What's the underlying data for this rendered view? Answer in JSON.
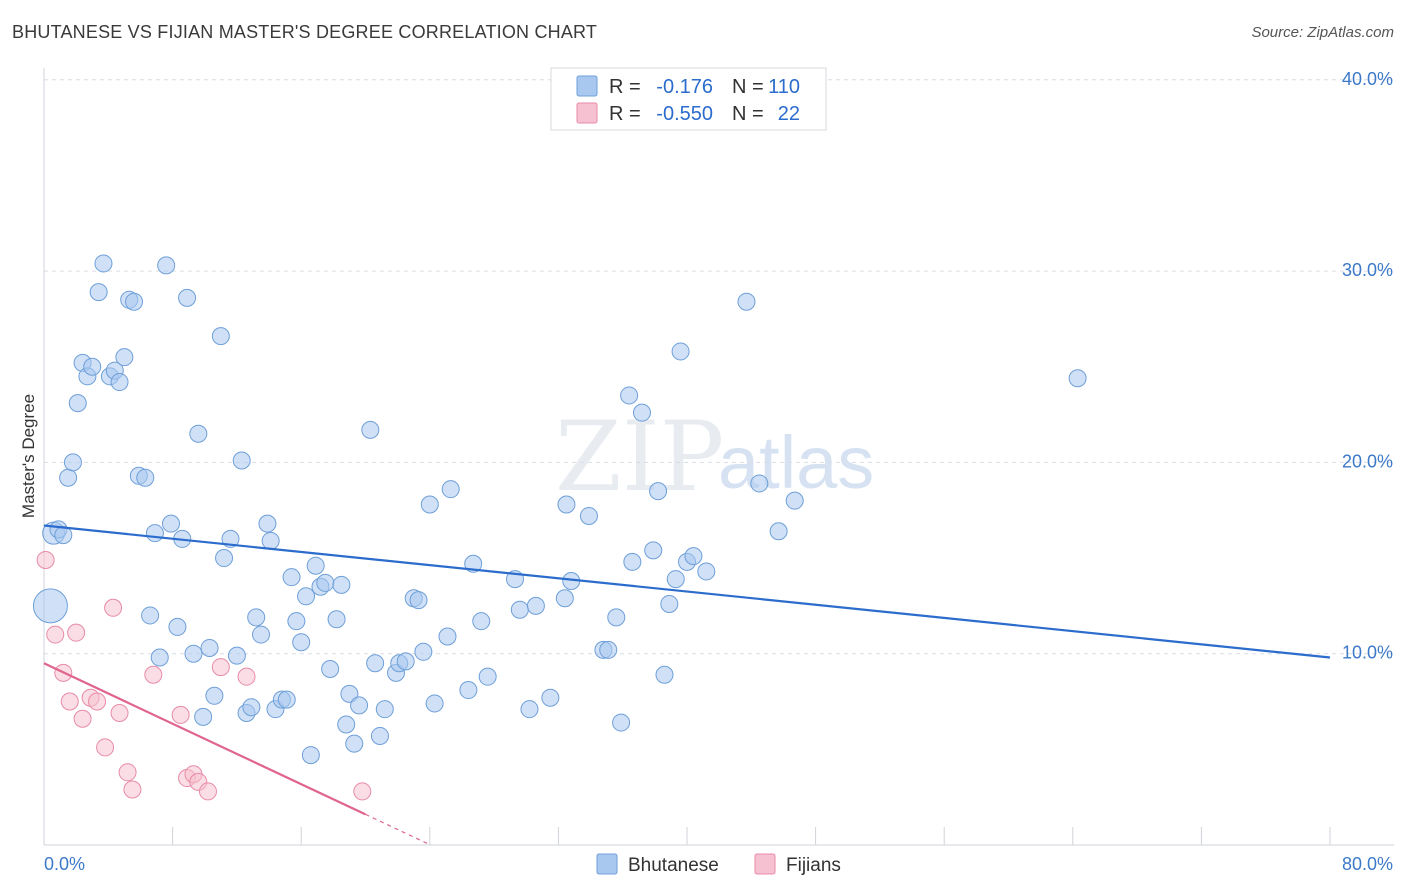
{
  "title": "BHUTANESE VS FIJIAN MASTER'S DEGREE CORRELATION CHART",
  "source": "Source: ZipAtlas.com",
  "watermark": {
    "zip": "ZIP",
    "atlas": "atlas"
  },
  "colors": {
    "blue": "#a9c8f0",
    "blue_stroke": "#6e9fd8",
    "blue_line": "#2b6ccc",
    "pink": "#f6c1d0",
    "pink_stroke": "#e88ba8",
    "pink_line": "#e0648f",
    "grid": "#d9dde3",
    "tick_label": "#3d79c9"
  },
  "legend_top": {
    "rows": [
      {
        "r_label": "R =",
        "r_value": "-0.176",
        "n_label": "N =",
        "n_value": "110"
      },
      {
        "r_label": "R =",
        "r_value": "-0.550",
        "n_label": "N =",
        "n_value": "22"
      }
    ]
  },
  "legend_bottom": [
    "Bhutanese",
    "Fijians"
  ],
  "chart_data": {
    "type": "scatter",
    "title": "BHUTANESE VS FIJIAN MASTER'S DEGREE CORRELATION CHART",
    "xlabel": "",
    "ylabel": "Master's Degree",
    "xlim": [
      0,
      80
    ],
    "ylim": [
      0,
      42
    ],
    "x_tick_labels": [
      {
        "value": 0,
        "label": "0.0%"
      },
      {
        "value": 80,
        "label": "80.0%"
      }
    ],
    "y_tick_labels": [
      {
        "value": 10,
        "label": "10.0%"
      },
      {
        "value": 20,
        "label": "20.0%"
      },
      {
        "value": 30,
        "label": "30.0%"
      },
      {
        "value": 40,
        "label": "40.0%"
      }
    ],
    "series": [
      {
        "name": "Bhutanese",
        "r": -0.176,
        "n": 110,
        "trend": {
          "x0": 0,
          "y0": 16.7,
          "x1": 80,
          "y1": 9.8
        },
        "points": [
          [
            0.4,
            12.5,
            3
          ],
          [
            0.6,
            16.3,
            2
          ],
          [
            0.9,
            16.5,
            1
          ],
          [
            1.2,
            16.2,
            1
          ],
          [
            1.5,
            19.2,
            1
          ],
          [
            1.8,
            20.0,
            1
          ],
          [
            2.1,
            23.1,
            1
          ],
          [
            2.4,
            25.2,
            1
          ],
          [
            2.7,
            24.5,
            1
          ],
          [
            3.0,
            25.0,
            1
          ],
          [
            3.4,
            28.9,
            1
          ],
          [
            3.7,
            30.4,
            1
          ],
          [
            4.1,
            24.5,
            1
          ],
          [
            4.4,
            24.8,
            1
          ],
          [
            4.7,
            24.2,
            1
          ],
          [
            5.0,
            25.5,
            1
          ],
          [
            5.3,
            28.5,
            1
          ],
          [
            5.6,
            28.4,
            1
          ],
          [
            5.9,
            19.3,
            1
          ],
          [
            6.3,
            19.2,
            1
          ],
          [
            6.6,
            12.0,
            1
          ],
          [
            6.9,
            16.3,
            1
          ],
          [
            7.2,
            9.8,
            1
          ],
          [
            7.6,
            30.3,
            1
          ],
          [
            7.9,
            16.8,
            1
          ],
          [
            8.3,
            11.4,
            1
          ],
          [
            8.6,
            16.0,
            1
          ],
          [
            8.9,
            28.6,
            1
          ],
          [
            9.3,
            10.0,
            1
          ],
          [
            9.6,
            21.5,
            1
          ],
          [
            9.9,
            6.7,
            1
          ],
          [
            10.3,
            10.3,
            1
          ],
          [
            10.6,
            7.8,
            1
          ],
          [
            11.0,
            26.6,
            1
          ],
          [
            11.2,
            15.0,
            1
          ],
          [
            11.6,
            16.0,
            1
          ],
          [
            12.0,
            9.9,
            1
          ],
          [
            12.3,
            20.1,
            1
          ],
          [
            12.6,
            6.9,
            1
          ],
          [
            12.9,
            7.2,
            1
          ],
          [
            13.2,
            11.9,
            1
          ],
          [
            13.5,
            11.0,
            1
          ],
          [
            13.9,
            16.8,
            1
          ],
          [
            14.1,
            15.9,
            1
          ],
          [
            14.4,
            7.1,
            1
          ],
          [
            14.8,
            7.6,
            1
          ],
          [
            15.1,
            7.6,
            1
          ],
          [
            15.4,
            14.0,
            1
          ],
          [
            15.7,
            11.7,
            1
          ],
          [
            16.0,
            10.6,
            1
          ],
          [
            16.3,
            13.0,
            1
          ],
          [
            16.6,
            4.7,
            1
          ],
          [
            16.9,
            14.6,
            1
          ],
          [
            17.2,
            13.5,
            1
          ],
          [
            17.5,
            13.7,
            1
          ],
          [
            17.8,
            9.2,
            1
          ],
          [
            18.2,
            11.8,
            1
          ],
          [
            18.5,
            13.6,
            1
          ],
          [
            18.8,
            6.3,
            1
          ],
          [
            19.0,
            7.9,
            1
          ],
          [
            19.3,
            5.3,
            1
          ],
          [
            19.6,
            7.3,
            1
          ],
          [
            20.3,
            21.7,
            1
          ],
          [
            20.6,
            9.5,
            1
          ],
          [
            20.9,
            5.7,
            1
          ],
          [
            21.2,
            7.1,
            1
          ],
          [
            21.9,
            9.0,
            1
          ],
          [
            22.1,
            9.5,
            1
          ],
          [
            22.5,
            9.6,
            1
          ],
          [
            23.0,
            12.9,
            1
          ],
          [
            23.3,
            12.8,
            1
          ],
          [
            23.6,
            10.1,
            1
          ],
          [
            24.0,
            17.8,
            1
          ],
          [
            24.3,
            7.4,
            1
          ],
          [
            25.1,
            10.9,
            1
          ],
          [
            25.3,
            18.6,
            1
          ],
          [
            26.4,
            8.1,
            1
          ],
          [
            26.7,
            14.7,
            1
          ],
          [
            27.2,
            11.7,
            1
          ],
          [
            27.6,
            8.8,
            1
          ],
          [
            29.3,
            13.9,
            1
          ],
          [
            29.6,
            12.3,
            1
          ],
          [
            30.2,
            7.1,
            1
          ],
          [
            30.6,
            12.5,
            1
          ],
          [
            31.5,
            7.7,
            1
          ],
          [
            32.4,
            12.9,
            1
          ],
          [
            32.5,
            17.8,
            1
          ],
          [
            32.8,
            13.8,
            1
          ],
          [
            33.9,
            17.2,
            1
          ],
          [
            34.8,
            10.2,
            1
          ],
          [
            35.1,
            10.2,
            1
          ],
          [
            35.6,
            11.9,
            1
          ],
          [
            35.9,
            6.4,
            1
          ],
          [
            36.4,
            23.5,
            1
          ],
          [
            36.6,
            14.8,
            1
          ],
          [
            37.2,
            22.6,
            1
          ],
          [
            37.9,
            15.4,
            1
          ],
          [
            38.2,
            18.5,
            1
          ],
          [
            38.6,
            8.9,
            1
          ],
          [
            38.9,
            12.6,
            1
          ],
          [
            39.3,
            13.9,
            1
          ],
          [
            39.6,
            25.8,
            1
          ],
          [
            40.0,
            14.8,
            1
          ],
          [
            40.4,
            15.1,
            1
          ],
          [
            41.2,
            14.3,
            1
          ],
          [
            43.7,
            28.4,
            1
          ],
          [
            44.5,
            18.9,
            1
          ],
          [
            45.7,
            16.4,
            1
          ],
          [
            46.7,
            18.0,
            1
          ],
          [
            64.3,
            24.4,
            1
          ]
        ]
      },
      {
        "name": "Fijians",
        "r": -0.55,
        "n": 22,
        "trend": {
          "x0": 0,
          "y0": 9.5,
          "x1": 20,
          "y1": 1.6,
          "dash_to_x": 24
        },
        "points": [
          [
            0.1,
            14.9,
            1
          ],
          [
            0.7,
            11.0,
            1
          ],
          [
            1.2,
            9.0,
            1
          ],
          [
            1.6,
            7.5,
            1
          ],
          [
            2.0,
            11.1,
            1
          ],
          [
            2.4,
            6.6,
            1
          ],
          [
            2.9,
            7.7,
            1
          ],
          [
            3.3,
            7.5,
            1
          ],
          [
            3.8,
            5.1,
            1
          ],
          [
            4.3,
            12.4,
            1
          ],
          [
            4.7,
            6.9,
            1
          ],
          [
            5.2,
            3.8,
            1
          ],
          [
            5.5,
            2.9,
            1
          ],
          [
            6.8,
            8.9,
            1
          ],
          [
            8.5,
            6.8,
            1
          ],
          [
            8.9,
            3.5,
            1
          ],
          [
            9.3,
            3.7,
            1
          ],
          [
            9.6,
            3.3,
            1
          ],
          [
            10.2,
            2.8,
            1
          ],
          [
            11.0,
            9.3,
            1
          ],
          [
            12.6,
            8.8,
            1
          ],
          [
            19.8,
            2.8,
            1
          ]
        ]
      }
    ]
  }
}
